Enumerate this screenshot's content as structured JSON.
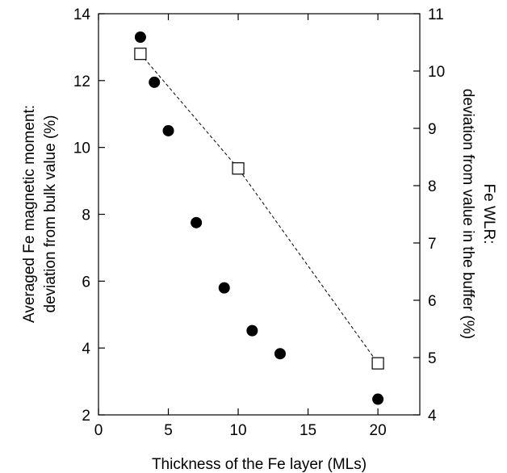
{
  "chart_data": {
    "type": "scatter",
    "title": "",
    "xlabel": "Thickness of the Fe layer (MLs)",
    "ylabel_left": [
      "Averaged Fe magnetic moment:",
      "deviation from bulk value (%)"
    ],
    "ylabel_right": [
      "Fe WLR:",
      "deviation from value in the buffer (%)"
    ],
    "xlim": [
      0,
      23
    ],
    "ylim_left": [
      2,
      14
    ],
    "ylim_right": [
      4,
      11
    ],
    "x_ticks": [
      0,
      5,
      10,
      15,
      20
    ],
    "y_ticks_left": [
      2,
      4,
      6,
      8,
      10,
      12,
      14
    ],
    "y_ticks_right": [
      4,
      5,
      6,
      7,
      8,
      9,
      10,
      11
    ],
    "grid": false,
    "series": [
      {
        "marker": "filled-circle",
        "axis": "left",
        "color": "#000000",
        "x": [
          3,
          4,
          5,
          7,
          9,
          11,
          13,
          20
        ],
        "y": [
          13.3,
          11.95,
          10.5,
          7.75,
          5.8,
          4.52,
          3.83,
          2.47
        ]
      },
      {
        "marker": "open-square",
        "axis": "right",
        "line": "dashed",
        "color": "#000000",
        "x": [
          3,
          10,
          20
        ],
        "y": [
          10.3,
          8.3,
          4.9
        ]
      }
    ]
  }
}
